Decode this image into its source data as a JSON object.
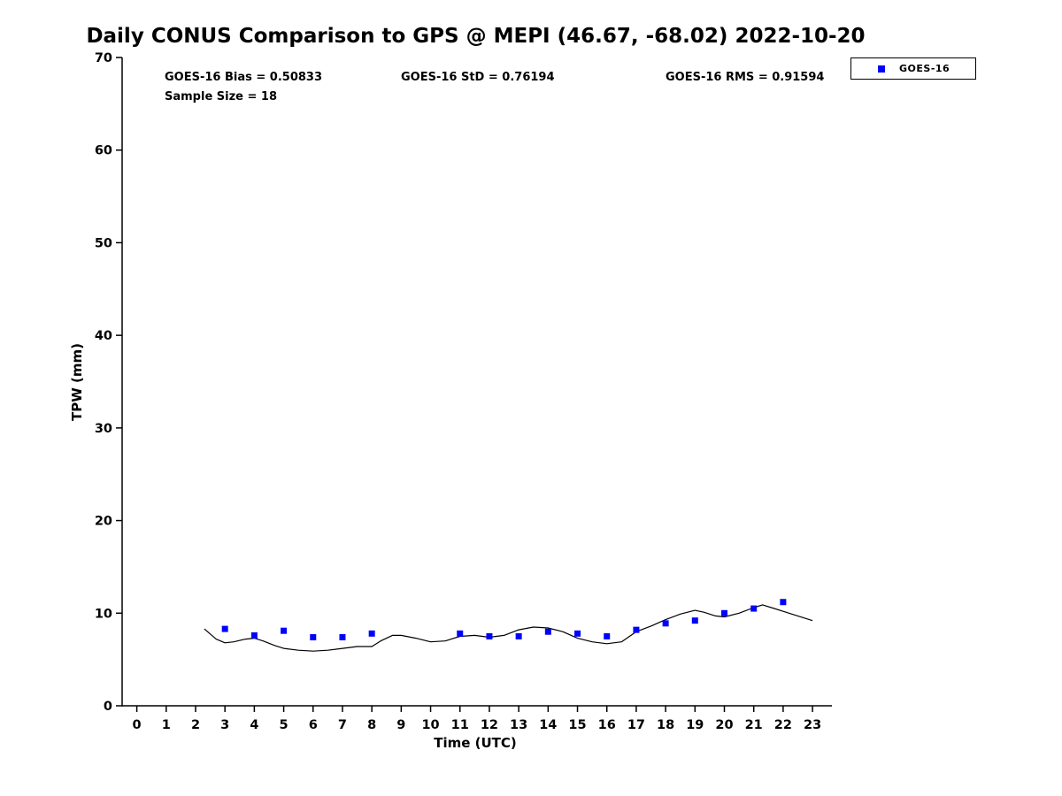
{
  "title": "Daily CONUS Comparison to GPS @ MEPI (46.67, -68.02) 2022-10-20",
  "annotations": {
    "bias": "GOES-16 Bias = 0.50833",
    "std": "GOES-16 StD = 0.76194",
    "rms": "GOES-16 RMS = 0.91594",
    "sample_size": "Sample Size = 18"
  },
  "legend": {
    "entries": [
      {
        "label": "GOES-16",
        "marker": "square",
        "color": "#0000ff"
      }
    ]
  },
  "colors": {
    "goes16": "#0000ff",
    "gps_line": "#000000"
  },
  "chart_data": {
    "type": "line",
    "title": "Daily CONUS Comparison to GPS @ MEPI (46.67, -68.02) 2022-10-20",
    "xlabel": "Time (UTC)",
    "ylabel": "TPW (mm)",
    "xlim": [
      -0.5,
      23.6
    ],
    "ylim": [
      0,
      70
    ],
    "xticks": [
      0,
      1,
      2,
      3,
      4,
      5,
      6,
      7,
      8,
      9,
      10,
      11,
      12,
      13,
      14,
      15,
      16,
      17,
      18,
      19,
      20,
      21,
      22,
      23
    ],
    "yticks": [
      0,
      10,
      20,
      30,
      40,
      50,
      60,
      70
    ],
    "grid": false,
    "legend_position": "top-right-outside",
    "series": [
      {
        "name": "GPS",
        "type": "line",
        "color": "#000000",
        "x": [
          2.3,
          2.7,
          3,
          3.3,
          3.7,
          4,
          4.3,
          4.7,
          5,
          5.5,
          6,
          6.5,
          7,
          7.5,
          8,
          8.3,
          8.7,
          9,
          9.5,
          10,
          10.5,
          11,
          11.5,
          12,
          12.5,
          13,
          13.5,
          14,
          14.5,
          15,
          15.5,
          16,
          16.5,
          17,
          17.5,
          18,
          18.5,
          19,
          19.3,
          19.7,
          20,
          20.5,
          21,
          21.3,
          21.7,
          22,
          22.5,
          23
        ],
        "y": [
          8.3,
          7.2,
          6.8,
          6.9,
          7.2,
          7.3,
          7.0,
          6.5,
          6.2,
          6.0,
          5.9,
          6.0,
          6.2,
          6.4,
          6.4,
          7.0,
          7.6,
          7.6,
          7.3,
          6.9,
          7.0,
          7.5,
          7.6,
          7.4,
          7.6,
          8.2,
          8.5,
          8.4,
          8.0,
          7.3,
          6.9,
          6.7,
          6.9,
          8.0,
          8.6,
          9.3,
          9.9,
          10.3,
          10.1,
          9.7,
          9.6,
          10.0,
          10.6,
          10.9,
          10.5,
          10.2,
          9.7,
          9.2
        ]
      },
      {
        "name": "GOES-16",
        "type": "scatter",
        "marker": "square",
        "color": "#0000ff",
        "x": [
          3,
          4,
          5,
          6,
          7,
          8,
          11,
          12,
          13,
          14,
          15,
          16,
          17,
          18,
          19,
          20,
          21,
          22
        ],
        "y": [
          8.3,
          7.6,
          8.1,
          7.4,
          7.4,
          7.8,
          7.8,
          7.5,
          7.5,
          8.0,
          7.8,
          7.5,
          8.2,
          8.9,
          9.2,
          10.0,
          10.5,
          11.2
        ]
      }
    ]
  }
}
